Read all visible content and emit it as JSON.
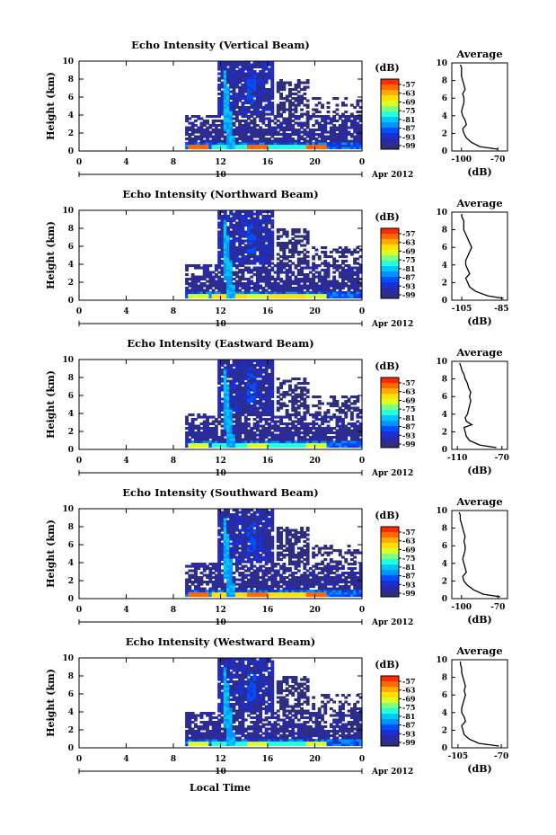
{
  "chart_data": {
    "type": "heatmap",
    "colorbar": {
      "unit": "(dB)",
      "ticks": [
        "-57",
        "-63",
        "-69",
        "-75",
        "-81",
        "-87",
        "-93",
        "-99"
      ],
      "colors": [
        "#ff2a00",
        "#ff6a00",
        "#ffab00",
        "#ffe000",
        "#d9ff26",
        "#80ff80",
        "#26ffd9",
        "#00c8ff",
        "#0094ff",
        "#0050ff",
        "#1a30d0",
        "#2a2aa8",
        "#2e2e80"
      ]
    },
    "x_axis": {
      "ticks": [
        "0",
        "4",
        "8",
        "12",
        "16",
        "20",
        "0"
      ],
      "day_label": "10",
      "date_label": "Apr 2012",
      "range": [
        0,
        24
      ]
    },
    "xlabel": "Local Time",
    "ylabel": "Height (km)",
    "y_ticks": [
      "0",
      "2",
      "4",
      "6",
      "8",
      "10"
    ],
    "ylim": [
      0,
      10
    ],
    "panels": [
      {
        "title": "Echo Intensity (Vertical Beam)",
        "avg_title": "Average",
        "avg_xlabel": "(dB)",
        "avg_xticks": [
          "-100",
          "-70"
        ],
        "avg_xlim": [
          -108,
          -62
        ],
        "avg_profile": [
          [
            -70,
            0.2
          ],
          [
            -85,
            0.5
          ],
          [
            -92,
            1.0
          ],
          [
            -96,
            1.5
          ],
          [
            -98,
            2.0
          ],
          [
            -99,
            2.5
          ],
          [
            -96,
            3.0
          ],
          [
            -97,
            3.5
          ],
          [
            -99,
            4.0
          ],
          [
            -100,
            4.5
          ],
          [
            -99,
            5.0
          ],
          [
            -98,
            5.5
          ],
          [
            -98,
            6.0
          ],
          [
            -99,
            6.5
          ],
          [
            -97,
            7.0
          ],
          [
            -98,
            7.5
          ],
          [
            -99,
            8.0
          ],
          [
            -100,
            8.5
          ],
          [
            -100,
            9.0
          ],
          [
            -100,
            9.5
          ],
          [
            -101,
            9.8
          ]
        ]
      },
      {
        "title": "Echo Intensity (Northward Beam)",
        "avg_title": "Average",
        "avg_xlabel": "(dB)",
        "avg_xticks": [
          "-105",
          "-85"
        ],
        "avg_xlim": [
          -110,
          -82
        ],
        "avg_profile": [
          [
            -84,
            0.2
          ],
          [
            -92,
            0.5
          ],
          [
            -98,
            1.0
          ],
          [
            -101,
            1.5
          ],
          [
            -102,
            2.0
          ],
          [
            -103,
            2.5
          ],
          [
            -101,
            3.0
          ],
          [
            -102,
            3.5
          ],
          [
            -103,
            4.0
          ],
          [
            -103,
            4.5
          ],
          [
            -102,
            5.0
          ],
          [
            -101,
            5.5
          ],
          [
            -100,
            6.0
          ],
          [
            -101,
            6.5
          ],
          [
            -102,
            7.0
          ],
          [
            -103,
            7.5
          ],
          [
            -104,
            8.0
          ],
          [
            -104,
            8.5
          ],
          [
            -104,
            9.0
          ],
          [
            -105,
            9.5
          ],
          [
            -105,
            9.8
          ]
        ]
      },
      {
        "title": "Echo Intensity (Eastward Beam)",
        "avg_title": "Average",
        "avg_xlabel": "(dB)",
        "avg_xticks": [
          "-110",
          "-70"
        ],
        "avg_xlim": [
          -115,
          -65
        ],
        "avg_profile": [
          [
            -75,
            0.2
          ],
          [
            -90,
            0.5
          ],
          [
            -99,
            1.0
          ],
          [
            -102,
            1.5
          ],
          [
            -103,
            2.0
          ],
          [
            -104,
            2.5
          ],
          [
            -97,
            2.8
          ],
          [
            -102,
            3.2
          ],
          [
            -103,
            3.6
          ],
          [
            -101,
            4.0
          ],
          [
            -100,
            4.5
          ],
          [
            -99,
            5.0
          ],
          [
            -98,
            5.5
          ],
          [
            -99,
            6.0
          ],
          [
            -98,
            6.5
          ],
          [
            -100,
            7.0
          ],
          [
            -101,
            7.5
          ],
          [
            -103,
            8.0
          ],
          [
            -104,
            8.5
          ],
          [
            -106,
            9.0
          ],
          [
            -107,
            9.5
          ],
          [
            -108,
            9.8
          ]
        ]
      },
      {
        "title": "Echo Intensity (Southward Beam)",
        "avg_title": "Average",
        "avg_xlabel": "(dB)",
        "avg_xticks": [
          "-100",
          "-70"
        ],
        "avg_xlim": [
          -108,
          -62
        ],
        "avg_profile": [
          [
            -68,
            0.2
          ],
          [
            -82,
            0.5
          ],
          [
            -90,
            1.0
          ],
          [
            -95,
            1.5
          ],
          [
            -98,
            2.0
          ],
          [
            -99,
            2.5
          ],
          [
            -96,
            3.0
          ],
          [
            -97,
            3.5
          ],
          [
            -98,
            4.0
          ],
          [
            -99,
            4.5
          ],
          [
            -98,
            5.0
          ],
          [
            -97,
            5.5
          ],
          [
            -97,
            6.0
          ],
          [
            -98,
            6.5
          ],
          [
            -97,
            7.0
          ],
          [
            -98,
            7.5
          ],
          [
            -99,
            8.0
          ],
          [
            -100,
            8.5
          ],
          [
            -101,
            9.0
          ],
          [
            -101,
            9.5
          ],
          [
            -102,
            9.8
          ]
        ]
      },
      {
        "title": "Echo Intensity (Westward Beam)",
        "avg_title": "Average",
        "avg_xlabel": "(dB)",
        "avg_xticks": [
          "-105",
          "-70"
        ],
        "avg_xlim": [
          -110,
          -65
        ],
        "avg_profile": [
          [
            -72,
            0.2
          ],
          [
            -88,
            0.5
          ],
          [
            -96,
            1.0
          ],
          [
            -100,
            1.5
          ],
          [
            -101,
            2.0
          ],
          [
            -102,
            2.5
          ],
          [
            -99,
            3.0
          ],
          [
            -100,
            3.5
          ],
          [
            -102,
            4.0
          ],
          [
            -102,
            4.5
          ],
          [
            -101,
            5.0
          ],
          [
            -100,
            5.5
          ],
          [
            -99,
            6.0
          ],
          [
            -100,
            6.5
          ],
          [
            -99,
            7.0
          ],
          [
            -100,
            7.5
          ],
          [
            -101,
            8.0
          ],
          [
            -102,
            8.5
          ],
          [
            -102,
            9.0
          ],
          [
            -103,
            9.5
          ],
          [
            -103,
            9.8
          ]
        ]
      }
    ]
  }
}
